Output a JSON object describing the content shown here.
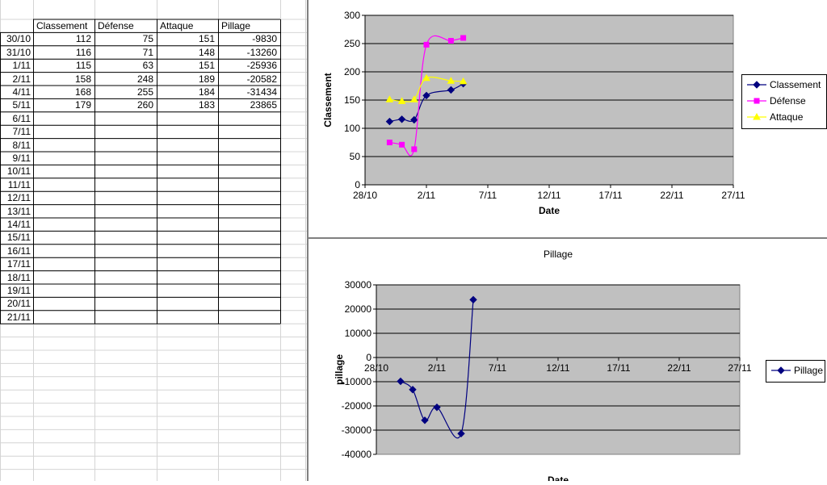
{
  "table": {
    "headers": [
      "",
      "Classement",
      "Défense",
      "Attaque",
      "Pillage"
    ],
    "rows": [
      {
        "date": "30/10",
        "classement": "112",
        "defense": "75",
        "attaque": "151",
        "pillage": "-9830"
      },
      {
        "date": "31/10",
        "classement": "116",
        "defense": "71",
        "attaque": "148",
        "pillage": "-13260"
      },
      {
        "date": "1/11",
        "classement": "115",
        "defense": "63",
        "attaque": "151",
        "pillage": "-25936"
      },
      {
        "date": "2/11",
        "classement": "158",
        "defense": "248",
        "attaque": "189",
        "pillage": "-20582"
      },
      {
        "date": "4/11",
        "classement": "168",
        "defense": "255",
        "attaque": "184",
        "pillage": "-31434"
      },
      {
        "date": "5/11",
        "classement": "179",
        "defense": "260",
        "attaque": "183",
        "pillage": "23865"
      },
      {
        "date": "6/11"
      },
      {
        "date": "7/11"
      },
      {
        "date": "8/11"
      },
      {
        "date": "9/11"
      },
      {
        "date": "10/11"
      },
      {
        "date": "11/11"
      },
      {
        "date": "12/11"
      },
      {
        "date": "13/11"
      },
      {
        "date": "14/11"
      },
      {
        "date": "15/11"
      },
      {
        "date": "16/11"
      },
      {
        "date": "17/11"
      },
      {
        "date": "18/11"
      },
      {
        "date": "19/11"
      },
      {
        "date": "20/11"
      },
      {
        "date": "21/11"
      }
    ]
  },
  "chart_data": [
    {
      "type": "line",
      "title": "",
      "xlabel": "Date",
      "ylabel": "Classement",
      "xlim": [
        "28/10",
        "27/11"
      ],
      "ylim": [
        0,
        300
      ],
      "x_ticks": [
        "28/10",
        "2/11",
        "7/11",
        "12/11",
        "17/11",
        "22/11",
        "27/11"
      ],
      "y_ticks": [
        0,
        50,
        100,
        150,
        200,
        250,
        300
      ],
      "x": [
        "30/10",
        "31/10",
        "1/11",
        "2/11",
        "4/11",
        "5/11"
      ],
      "series": [
        {
          "name": "Classement",
          "color": "#000080",
          "marker": "diamond",
          "values": [
            112,
            116,
            115,
            158,
            168,
            179
          ]
        },
        {
          "name": "Défense",
          "color": "#ff00ff",
          "marker": "square",
          "values": [
            75,
            71,
            63,
            248,
            255,
            260
          ]
        },
        {
          "name": "Attaque",
          "color": "#ffff00",
          "marker": "triangle",
          "values": [
            151,
            148,
            151,
            189,
            184,
            183
          ]
        }
      ],
      "grid": true,
      "background": "#c0c0c0",
      "legend_position": "right"
    },
    {
      "type": "line",
      "title": "Pillage",
      "xlabel": "Date",
      "ylabel": "pillage",
      "xlim": [
        "28/10",
        "27/11"
      ],
      "ylim": [
        -40000,
        30000
      ],
      "x_ticks": [
        "28/10",
        "2/11",
        "7/11",
        "12/11",
        "17/11",
        "22/11",
        "27/11"
      ],
      "y_ticks": [
        -40000,
        -30000,
        -20000,
        -10000,
        0,
        10000,
        20000,
        30000
      ],
      "x": [
        "30/10",
        "31/10",
        "1/11",
        "2/11",
        "4/11",
        "5/11"
      ],
      "series": [
        {
          "name": "Pillage",
          "color": "#000080",
          "marker": "diamond",
          "values": [
            -9830,
            -13260,
            -25936,
            -20582,
            -31434,
            23865
          ]
        }
      ],
      "grid": true,
      "background": "#c0c0c0",
      "legend_position": "right"
    }
  ]
}
